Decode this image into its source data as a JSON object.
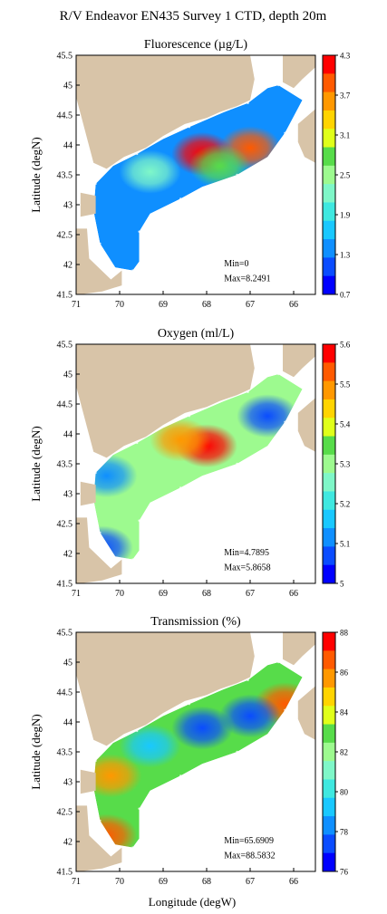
{
  "figure": {
    "title": "R/V Endeavor EN435 Survey 1 CTD, depth 20m",
    "ylabel": "Latitude (degN)",
    "xlabel": "Longitude (degW)"
  },
  "colors": {
    "land": "#d8c4a8",
    "ocean": "#ffffff",
    "scale": [
      "#0000ff",
      "#0a4cff",
      "#0f8fff",
      "#19c8ff",
      "#3fe8e0",
      "#7ff7c8",
      "#9dfa8f",
      "#57dc4a",
      "#e0ff1a",
      "#ffd400",
      "#ff9800",
      "#ff5a00",
      "#ff0000"
    ]
  },
  "chart_data": [
    {
      "type": "heatmap",
      "title": "Fluorescence (µg/L)",
      "x_ticks": [
        "71",
        "70",
        "69",
        "68",
        "67",
        "66"
      ],
      "y_ticks": [
        "45.5",
        "45",
        "44.5",
        "44",
        "43.5",
        "43",
        "42.5",
        "42",
        "41.5"
      ],
      "xlim": [
        71,
        65.5
      ],
      "ylim": [
        41.5,
        45.5
      ],
      "colorbar_ticks": [
        "4.3",
        "3.7",
        "3.1",
        "2.5",
        "1.9",
        "1.3",
        "0.7"
      ],
      "colorbar_range": [
        0.7,
        4.3
      ],
      "min_label": "Min=0",
      "max_label": "Max=8.2491",
      "hotspots": [
        {
          "lon": 68.1,
          "lat": 43.85,
          "level": 1.0
        },
        {
          "lon": 67.0,
          "lat": 43.95,
          "level": 0.92
        },
        {
          "lon": 67.7,
          "lat": 43.65,
          "level": 0.55
        },
        {
          "lon": 69.3,
          "lat": 43.55,
          "level": 0.45
        }
      ],
      "base_level": 0.2
    },
    {
      "type": "heatmap",
      "title": "Oxygen (ml/L)",
      "x_ticks": [
        "71",
        "70",
        "69",
        "68",
        "67",
        "66"
      ],
      "y_ticks": [
        "45.5",
        "45",
        "44.5",
        "44",
        "43.5",
        "43",
        "42.5",
        "42",
        "41.5"
      ],
      "xlim": [
        71,
        65.5
      ],
      "ylim": [
        41.5,
        45.5
      ],
      "colorbar_ticks": [
        "5.6",
        "5.5",
        "5.4",
        "5.3",
        "5.2",
        "5.1",
        "5"
      ],
      "colorbar_range": [
        5.0,
        5.6
      ],
      "min_label": "Min=4.7895",
      "max_label": "Max=5.8658",
      "hotspots": [
        {
          "lon": 68.0,
          "lat": 43.8,
          "level": 0.98
        },
        {
          "lon": 68.6,
          "lat": 43.9,
          "level": 0.8
        },
        {
          "lon": 66.6,
          "lat": 44.3,
          "level": 0.05
        },
        {
          "lon": 70.4,
          "lat": 42.1,
          "level": 0.05
        },
        {
          "lon": 70.3,
          "lat": 43.3,
          "level": 0.15
        }
      ],
      "base_level": 0.5
    },
    {
      "type": "heatmap",
      "title": "Transmission (%)",
      "x_ticks": [
        "71",
        "70",
        "69",
        "68",
        "67",
        "66"
      ],
      "y_ticks": [
        "45.5",
        "45",
        "44.5",
        "44",
        "43.5",
        "43",
        "42.5",
        "42",
        "41.5"
      ],
      "xlim": [
        71,
        65.5
      ],
      "ylim": [
        41.5,
        45.5
      ],
      "colorbar_ticks": [
        "88",
        "86",
        "84",
        "82",
        "80",
        "78",
        "76"
      ],
      "colorbar_range": [
        76,
        88
      ],
      "min_label": "Min=65.6909",
      "max_label": "Max=88.5832",
      "hotspots": [
        {
          "lon": 66.2,
          "lat": 44.3,
          "level": 0.95
        },
        {
          "lon": 70.3,
          "lat": 42.1,
          "level": 0.95
        },
        {
          "lon": 70.2,
          "lat": 43.1,
          "level": 0.8
        },
        {
          "lon": 68.1,
          "lat": 43.9,
          "level": 0.1
        },
        {
          "lon": 67.0,
          "lat": 44.1,
          "level": 0.1
        },
        {
          "lon": 69.3,
          "lat": 43.6,
          "level": 0.25
        }
      ],
      "base_level": 0.6
    }
  ]
}
